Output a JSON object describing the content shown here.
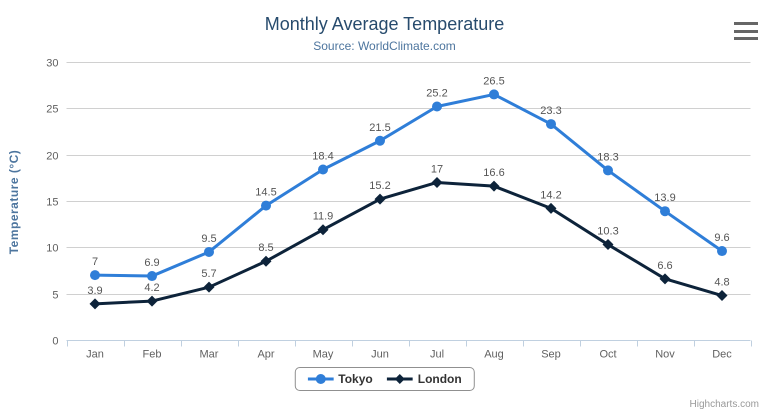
{
  "chart": {
    "title": "Monthly Average Temperature",
    "subtitle": "Source: WorldClimate.com",
    "y_axis_title": "Temperature (°C)",
    "credits": "Highcharts.com"
  },
  "chart_data": {
    "type": "line",
    "title": "Monthly Average Temperature",
    "subtitle": "Source: WorldClimate.com",
    "categories": [
      "Jan",
      "Feb",
      "Mar",
      "Apr",
      "May",
      "Jun",
      "Jul",
      "Aug",
      "Sep",
      "Oct",
      "Nov",
      "Dec"
    ],
    "series": [
      {
        "name": "Tokyo",
        "color": "#2f7ed8",
        "marker": "circle",
        "values": [
          7,
          6.9,
          9.5,
          14.5,
          18.4,
          21.5,
          25.2,
          26.5,
          23.3,
          18.3,
          13.9,
          9.6
        ]
      },
      {
        "name": "London",
        "color": "#0d233a",
        "marker": "diamond",
        "values": [
          3.9,
          4.2,
          5.7,
          8.5,
          11.9,
          15.2,
          17,
          16.6,
          14.2,
          10.3,
          6.6,
          4.8
        ]
      }
    ],
    "xlabel": "",
    "ylabel": "Temperature (°C)",
    "ylim": [
      0,
      30
    ],
    "ytick_step": 5,
    "grid": true,
    "data_labels": true,
    "legend_position": "bottom"
  },
  "legend": {
    "items": [
      {
        "label": "Tokyo"
      },
      {
        "label": "London"
      }
    ]
  },
  "style": {
    "grid_color": "#d0d0d0",
    "axis_line_color": "#c0d0e0",
    "tick_label_color": "#606060",
    "data_label_color": "#555555",
    "title_color": "#274b6d",
    "subtitle_color": "#4d759e",
    "menu_icon_color": "#666666"
  }
}
